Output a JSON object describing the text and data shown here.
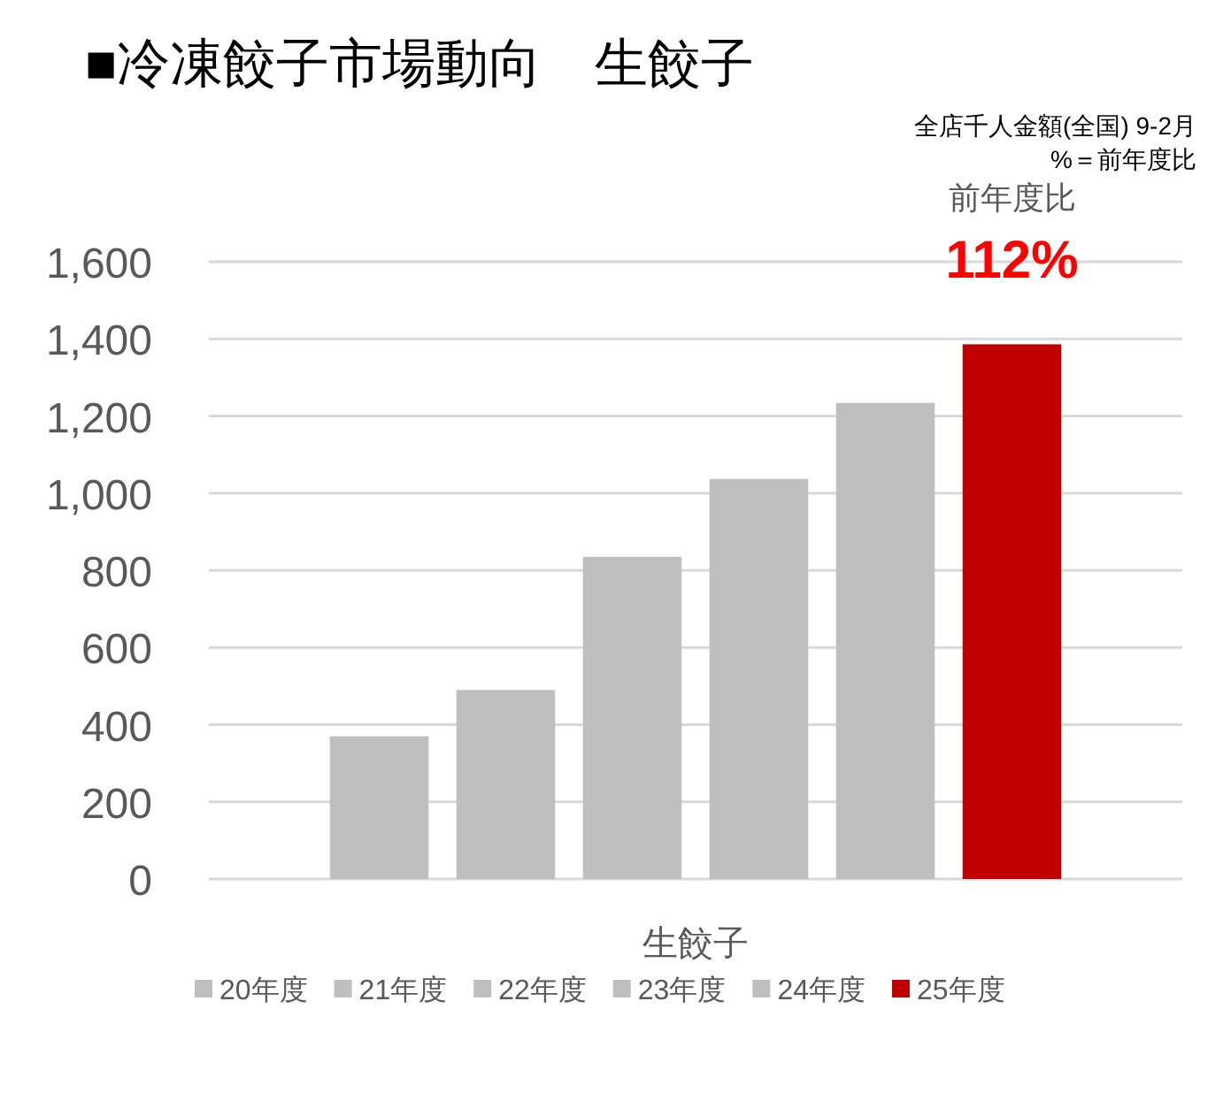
{
  "chart_data": {
    "type": "bar",
    "title": "■冷凍餃子市場動向　生餃子",
    "subtitle": "全店千人金額(全国)  9-2月",
    "annotations": [
      "%＝前年度比",
      "前年度比",
      "112%"
    ],
    "categories": [
      "生餃子"
    ],
    "series": [
      {
        "name": "20年度",
        "color": "#bfbfbf",
        "values": [
          370
        ]
      },
      {
        "name": "21年度",
        "color": "#bfbfbf",
        "values": [
          490
        ]
      },
      {
        "name": "22年度",
        "color": "#bfbfbf",
        "values": [
          835
        ]
      },
      {
        "name": "23年度",
        "color": "#bfbfbf",
        "values": [
          1037
        ]
      },
      {
        "name": "24年度",
        "color": "#bfbfbf",
        "values": [
          1234
        ]
      },
      {
        "name": "25年度",
        "color": "#c00000",
        "values": [
          1386
        ]
      }
    ],
    "ylim": [
      0,
      1600
    ],
    "yticks": [
      0,
      200,
      400,
      600,
      800,
      {
        "value": 1000,
        "label": "1,000"
      },
      {
        "value": 1200,
        "label": "1,200"
      },
      {
        "value": 1400,
        "label": "1,400"
      },
      {
        "value": 1600,
        "label": "1,600"
      }
    ],
    "grid": "y",
    "legend": "bottom"
  }
}
